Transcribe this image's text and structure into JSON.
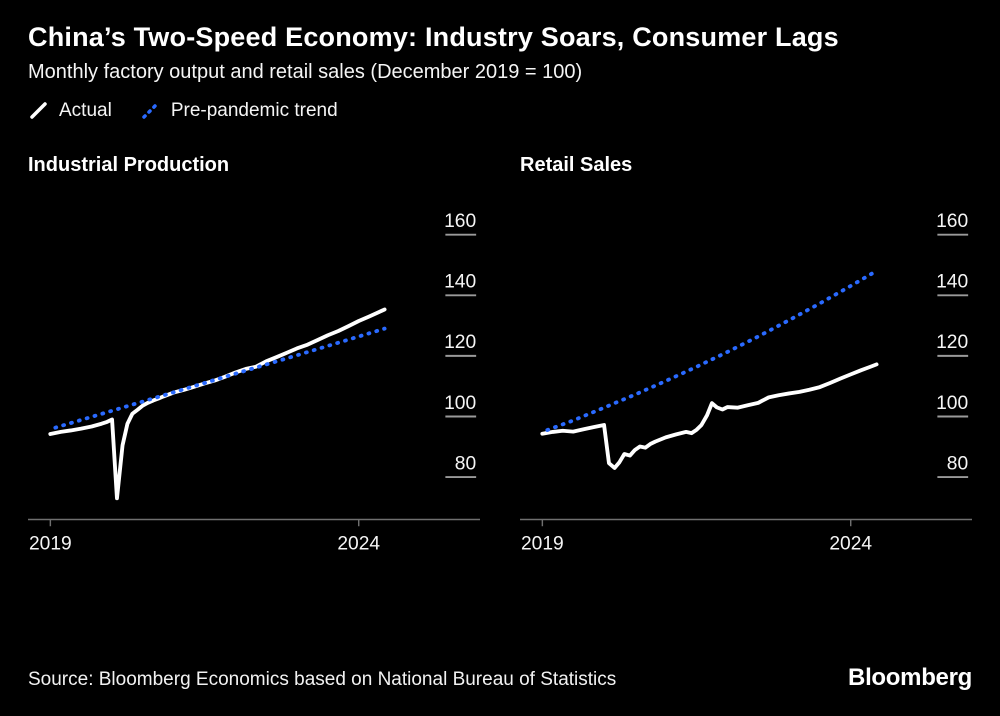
{
  "header": {
    "title": "China’s Two-Speed Economy: Industry Soars, Consumer Lags",
    "subtitle": "Monthly factory output and retail sales (December 2019 = 100)"
  },
  "legend": {
    "items": [
      {
        "label": "Actual",
        "color": "#ffffff",
        "dashed": false
      },
      {
        "label": "Pre-pandemic trend",
        "color": "#2a6aff",
        "dashed": true
      }
    ]
  },
  "colors": {
    "background": "#000000",
    "text": "#f5f5f5",
    "axis": "#6f6f6f",
    "tick_dash": "#9a9a9a",
    "actual": "#ffffff",
    "trend": "#2a6aff"
  },
  "footer": {
    "source": "Source: Bloomberg Economics based on National Bureau of Statistics",
    "brand": "Bloomberg"
  },
  "chart_data": [
    {
      "type": "line",
      "title": "Industrial Production",
      "xlabel": "",
      "ylabel": "",
      "grid": false,
      "xlim": [
        2018.7,
        2024.75
      ],
      "ylim": [
        66,
        172
      ],
      "x_ticks": [
        {
          "value": 2019,
          "label": "2019"
        },
        {
          "value": 2024,
          "label": "2024"
        }
      ],
      "y_ticks": [
        160,
        140,
        120,
        100,
        80
      ],
      "series": [
        {
          "name": "Actual",
          "color": "#ffffff",
          "dashed": false,
          "points": [
            [
              2019.0,
              94.2
            ],
            [
              2019.17,
              94.9
            ],
            [
              2019.33,
              95.4
            ],
            [
              2019.5,
              96.0
            ],
            [
              2019.67,
              96.7
            ],
            [
              2019.83,
              97.6
            ],
            [
              2019.92,
              98.2
            ],
            [
              2020.0,
              99.0
            ],
            [
              2020.08,
              73.0
            ],
            [
              2020.17,
              90.5
            ],
            [
              2020.25,
              97.6
            ],
            [
              2020.33,
              100.9
            ],
            [
              2020.42,
              102.3
            ],
            [
              2020.5,
              103.6
            ],
            [
              2020.58,
              104.5
            ],
            [
              2020.67,
              105.3
            ],
            [
              2020.75,
              105.9
            ],
            [
              2020.83,
              106.6
            ],
            [
              2021.0,
              107.9
            ],
            [
              2021.17,
              108.8
            ],
            [
              2021.33,
              109.8
            ],
            [
              2021.5,
              110.9
            ],
            [
              2021.67,
              111.9
            ],
            [
              2021.83,
              113.1
            ],
            [
              2022.0,
              114.5
            ],
            [
              2022.17,
              115.7
            ],
            [
              2022.33,
              116.4
            ],
            [
              2022.5,
              118.2
            ],
            [
              2022.67,
              119.6
            ],
            [
              2022.83,
              121.0
            ],
            [
              2023.0,
              122.5
            ],
            [
              2023.17,
              123.7
            ],
            [
              2023.33,
              125.2
            ],
            [
              2023.5,
              126.8
            ],
            [
              2023.67,
              128.2
            ],
            [
              2023.83,
              129.8
            ],
            [
              2024.0,
              131.5
            ],
            [
              2024.17,
              133.0
            ],
            [
              2024.33,
              134.5
            ],
            [
              2024.42,
              135.3
            ]
          ]
        },
        {
          "name": "Pre-pandemic trend",
          "color": "#2a6aff",
          "dashed": true,
          "points": [
            [
              2019.08,
              96.3
            ],
            [
              2020.0,
              101.9
            ],
            [
              2021.0,
              108.0
            ],
            [
              2022.0,
              114.1
            ],
            [
              2023.0,
              120.2
            ],
            [
              2024.0,
              126.4
            ],
            [
              2024.42,
              129.0
            ]
          ]
        }
      ]
    },
    {
      "type": "line",
      "title": "Retail Sales",
      "xlabel": "",
      "ylabel": "",
      "grid": false,
      "xlim": [
        2018.7,
        2024.75
      ],
      "ylim": [
        66,
        172
      ],
      "x_ticks": [
        {
          "value": 2019,
          "label": "2019"
        },
        {
          "value": 2024,
          "label": "2024"
        }
      ],
      "y_ticks": [
        160,
        140,
        120,
        100,
        80
      ],
      "series": [
        {
          "name": "Actual",
          "color": "#ffffff",
          "dashed": false,
          "points": [
            [
              2019.0,
              94.3
            ],
            [
              2019.17,
              94.9
            ],
            [
              2019.33,
              95.3
            ],
            [
              2019.5,
              95.0
            ],
            [
              2019.67,
              95.8
            ],
            [
              2019.83,
              96.5
            ],
            [
              2020.0,
              97.2
            ],
            [
              2020.08,
              84.6
            ],
            [
              2020.17,
              83.0
            ],
            [
              2020.25,
              84.9
            ],
            [
              2020.33,
              87.6
            ],
            [
              2020.42,
              87.1
            ],
            [
              2020.5,
              88.9
            ],
            [
              2020.58,
              90.1
            ],
            [
              2020.67,
              89.7
            ],
            [
              2020.75,
              90.9
            ],
            [
              2020.83,
              91.7
            ],
            [
              2021.0,
              93.1
            ],
            [
              2021.17,
              94.1
            ],
            [
              2021.33,
              94.9
            ],
            [
              2021.42,
              94.5
            ],
            [
              2021.5,
              95.6
            ],
            [
              2021.58,
              97.2
            ],
            [
              2021.67,
              100.4
            ],
            [
              2021.75,
              104.4
            ],
            [
              2021.83,
              103.0
            ],
            [
              2021.92,
              102.3
            ],
            [
              2022.0,
              103.1
            ],
            [
              2022.17,
              102.9
            ],
            [
              2022.33,
              103.7
            ],
            [
              2022.5,
              104.5
            ],
            [
              2022.67,
              106.3
            ],
            [
              2022.83,
              107.0
            ],
            [
              2023.0,
              107.6
            ],
            [
              2023.17,
              108.1
            ],
            [
              2023.33,
              108.8
            ],
            [
              2023.5,
              109.7
            ],
            [
              2023.67,
              111.1
            ],
            [
              2023.83,
              112.5
            ],
            [
              2024.0,
              113.9
            ],
            [
              2024.17,
              115.3
            ],
            [
              2024.33,
              116.5
            ],
            [
              2024.42,
              117.2
            ]
          ]
        },
        {
          "name": "Pre-pandemic trend",
          "color": "#2a6aff",
          "dashed": true,
          "points": [
            [
              2019.08,
              95.5
            ],
            [
              2019.5,
              98.7
            ],
            [
              2020.0,
              102.9
            ],
            [
              2020.5,
              107.2
            ],
            [
              2021.0,
              111.7
            ],
            [
              2021.5,
              116.4
            ],
            [
              2022.0,
              121.3
            ],
            [
              2022.5,
              126.4
            ],
            [
              2023.0,
              131.8
            ],
            [
              2023.5,
              137.3
            ],
            [
              2024.0,
              143.1
            ],
            [
              2024.38,
              147.6
            ]
          ]
        }
      ]
    }
  ]
}
